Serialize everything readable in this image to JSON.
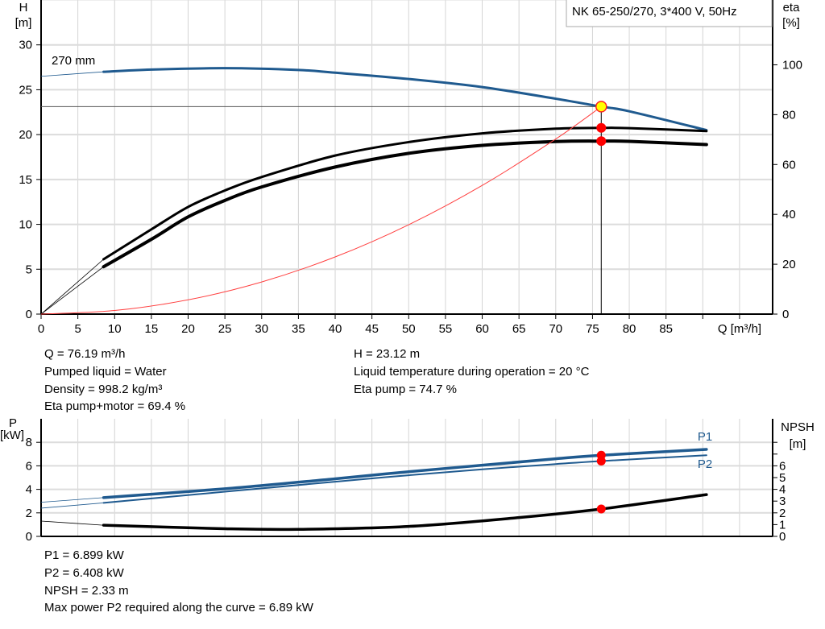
{
  "chart_data": [
    {
      "type": "line",
      "title_box": "NK 65-250/270, 3*400 V, 50Hz",
      "xlabel": "Q [m³/h]",
      "ylabel_left": [
        "H",
        "[m]"
      ],
      "ylabel_right": [
        "eta",
        "[%]"
      ],
      "xlim": [
        0,
        99.5
      ],
      "ylim_left": [
        0,
        35
      ],
      "ylim_right": [
        0,
        126
      ],
      "x_ticks": [
        0,
        5,
        10,
        15,
        20,
        25,
        30,
        35,
        40,
        45,
        50,
        55,
        60,
        65,
        70,
        75,
        80,
        85
      ],
      "y_ticks_left": [
        0,
        5,
        10,
        15,
        20,
        25,
        30
      ],
      "y_ticks_right": [
        0,
        20,
        40,
        60,
        80,
        100
      ],
      "grid": true,
      "curve_label": "270 mm",
      "series": [
        {
          "key": "H",
          "axis": "left",
          "color": "#1f5a8f",
          "x": [
            0,
            8.5,
            15,
            25,
            35,
            40,
            50,
            60,
            70,
            76.19,
            80,
            90.5
          ],
          "y": [
            26.5,
            27.0,
            27.25,
            27.4,
            27.2,
            26.9,
            26.2,
            25.3,
            24.0,
            23.12,
            22.6,
            20.5
          ]
        },
        {
          "key": "eta_pump",
          "axis": "right",
          "color": "#000000",
          "x": [
            0,
            8.5,
            15,
            20,
            25,
            30,
            40,
            50,
            60,
            70,
            76.19,
            80,
            90.5
          ],
          "y": [
            0,
            22,
            34,
            43,
            49.6,
            55,
            63.6,
            69,
            72.5,
            74.4,
            74.7,
            74.6,
            73.4
          ]
        },
        {
          "key": "eta_pump_motor",
          "axis": "right",
          "color": "#000000",
          "x": [
            0,
            8.5,
            15,
            20,
            25,
            30,
            40,
            50,
            60,
            70,
            76.19,
            80,
            90.5
          ],
          "y": [
            0,
            19,
            30,
            39,
            45.6,
            51,
            59,
            64.5,
            67.7,
            69.2,
            69.4,
            69.3,
            68.0
          ]
        },
        {
          "key": "system",
          "axis": "left",
          "color": "#ff4040",
          "x": [
            0,
            10,
            20,
            30,
            40,
            50,
            60,
            70,
            76.19
          ],
          "y": [
            0,
            0.4,
            1.59,
            3.58,
            6.37,
            9.96,
            14.34,
            19.51,
            23.12
          ]
        }
      ],
      "duty_point": {
        "Q": 76.19,
        "H": 23.12,
        "eta_pump": 74.7,
        "eta_pump_motor": 69.4
      }
    },
    {
      "type": "line",
      "ylabel_left": [
        "P",
        "[kW]"
      ],
      "ylabel_right": [
        "NPSH",
        "[m]"
      ],
      "xlim": [
        0,
        99.5
      ],
      "ylim_left": [
        0,
        10
      ],
      "ylim_right": [
        0,
        10
      ],
      "y_ticks_left": [
        0,
        2,
        4,
        6,
        8
      ],
      "y_ticks_right": [
        0,
        1,
        2,
        3,
        4,
        5,
        6,
        7,
        8
      ],
      "y_tick_labels_right": [
        "0",
        "1",
        "2",
        "3",
        "4",
        "5",
        "6",
        "",
        ""
      ],
      "grid": true,
      "series": [
        {
          "name": "P1",
          "axis": "left",
          "color": "#1f5a8f",
          "x": [
            0,
            8.5,
            25,
            40,
            50,
            60,
            70,
            76.19,
            90.5
          ],
          "y": [
            2.9,
            3.3,
            4.05,
            4.9,
            5.5,
            6.05,
            6.6,
            6.899,
            7.4
          ]
        },
        {
          "name": "P2",
          "axis": "left",
          "color": "#1f5a8f",
          "x": [
            0,
            8.5,
            25,
            40,
            50,
            60,
            70,
            76.19,
            90.5
          ],
          "y": [
            2.4,
            2.85,
            3.8,
            4.65,
            5.2,
            5.7,
            6.15,
            6.408,
            6.9
          ]
        },
        {
          "key": "NPSH",
          "axis": "right",
          "color": "#000000",
          "x": [
            0,
            8.5,
            25,
            35,
            50,
            65,
            76.19,
            90.5
          ],
          "y": [
            1.3,
            0.95,
            0.65,
            0.6,
            0.85,
            1.6,
            2.33,
            3.55
          ]
        }
      ]
    }
  ],
  "info_top": {
    "left": [
      "Q = 76.19 m³/h",
      "Pumped liquid = Water",
      "Density = 998.2 kg/m³",
      "Eta pump+motor = 69.4 %"
    ],
    "right": [
      "H = 23.12 m",
      "Liquid temperature during operation = 20 °C",
      "Eta pump = 74.7 %"
    ]
  },
  "info_bottom": [
    "P1 = 6.899 kW",
    "P2 = 6.408 kW",
    "NPSH = 2.33 m",
    "Max power P2 required along the curve = 6.89 kW"
  ]
}
